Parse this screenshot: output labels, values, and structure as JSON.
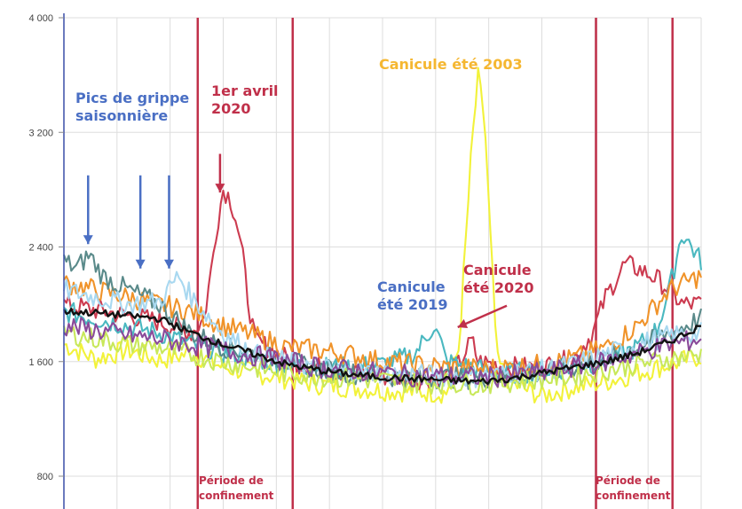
{
  "chart_data": {
    "type": "line",
    "title": "",
    "xlabel": "",
    "ylabel": "",
    "ylim": [
      700,
      4050
    ],
    "x_range": [
      0,
      100
    ],
    "grid": "on",
    "legend": "none",
    "yticks": [
      {
        "value": 800,
        "label": "800"
      },
      {
        "value": 1600,
        "label": "1 600"
      },
      {
        "value": 2400,
        "label": "2 400"
      },
      {
        "value": 3200,
        "label": "3 200"
      },
      {
        "value": 4000,
        "label": "4 000"
      }
    ],
    "period_markers": [
      {
        "start": 21,
        "end": 35.9,
        "label_lines": [
          "Période de",
          "confinement"
        ],
        "color": "#c0304a"
      },
      {
        "start": 83.5,
        "end": 95.5,
        "label_lines": [
          "Période de",
          "confinement"
        ],
        "color": "#c0304a"
      }
    ],
    "series": [
      {
        "color": "#f2f23a",
        "points": [
          [
            0,
            1720
          ],
          [
            5,
            1620
          ],
          [
            10,
            1680
          ],
          [
            15,
            1610
          ],
          [
            20,
            1660
          ],
          [
            25,
            1560
          ],
          [
            30,
            1520
          ],
          [
            35,
            1480
          ],
          [
            40,
            1440
          ],
          [
            45,
            1420
          ],
          [
            50,
            1400
          ],
          [
            55,
            1390
          ],
          [
            60,
            1380
          ],
          [
            62,
            1700
          ],
          [
            63,
            2400
          ],
          [
            64,
            3100
          ],
          [
            65,
            3580
          ],
          [
            66,
            3300
          ],
          [
            67,
            2400
          ],
          [
            68,
            1600
          ],
          [
            70,
            1450
          ],
          [
            75,
            1360
          ],
          [
            80,
            1420
          ],
          [
            85,
            1460
          ],
          [
            90,
            1520
          ],
          [
            95,
            1580
          ],
          [
            100,
            1640
          ]
        ]
      },
      {
        "color": "#cc3b50",
        "points": [
          [
            0,
            2000
          ],
          [
            5,
            1960
          ],
          [
            10,
            1920
          ],
          [
            15,
            1880
          ],
          [
            20,
            1800
          ],
          [
            22,
            1900
          ],
          [
            23,
            2200
          ],
          [
            24,
            2550
          ],
          [
            25,
            2800
          ],
          [
            26,
            2750
          ],
          [
            27,
            2600
          ],
          [
            28,
            2350
          ],
          [
            29,
            2000
          ],
          [
            30,
            1750
          ],
          [
            35,
            1620
          ],
          [
            40,
            1560
          ],
          [
            45,
            1520
          ],
          [
            50,
            1500
          ],
          [
            55,
            1480
          ],
          [
            60,
            1500
          ],
          [
            62,
            1580
          ],
          [
            64,
            1750
          ],
          [
            65,
            1600
          ],
          [
            70,
            1560
          ],
          [
            75,
            1560
          ],
          [
            80,
            1620
          ],
          [
            83,
            1800
          ],
          [
            85,
            2050
          ],
          [
            88,
            2280
          ],
          [
            90,
            2250
          ],
          [
            93,
            2180
          ],
          [
            95,
            2100
          ],
          [
            97,
            2000
          ],
          [
            100,
            2000
          ]
        ]
      },
      {
        "color": "#4ab8c0",
        "points": [
          [
            0,
            1950
          ],
          [
            5,
            1900
          ],
          [
            10,
            1850
          ],
          [
            15,
            1800
          ],
          [
            20,
            1720
          ],
          [
            25,
            1660
          ],
          [
            30,
            1620
          ],
          [
            35,
            1580
          ],
          [
            40,
            1560
          ],
          [
            45,
            1560
          ],
          [
            50,
            1580
          ],
          [
            55,
            1650
          ],
          [
            58,
            1850
          ],
          [
            59,
            1750
          ],
          [
            60,
            1600
          ],
          [
            65,
            1550
          ],
          [
            70,
            1520
          ],
          [
            75,
            1530
          ],
          [
            80,
            1560
          ],
          [
            85,
            1600
          ],
          [
            90,
            1700
          ],
          [
            93,
            1820
          ],
          [
            95,
            2100
          ],
          [
            97,
            2500
          ],
          [
            100,
            2300
          ]
        ]
      },
      {
        "color": "#f0932a",
        "points": [
          [
            0,
            2150
          ],
          [
            5,
            2100
          ],
          [
            10,
            2050
          ],
          [
            15,
            2000
          ],
          [
            20,
            1950
          ],
          [
            25,
            1850
          ],
          [
            30,
            1780
          ],
          [
            35,
            1700
          ],
          [
            40,
            1680
          ],
          [
            45,
            1650
          ],
          [
            50,
            1600
          ],
          [
            55,
            1580
          ],
          [
            60,
            1560
          ],
          [
            65,
            1550
          ],
          [
            70,
            1560
          ],
          [
            75,
            1580
          ],
          [
            80,
            1620
          ],
          [
            85,
            1700
          ],
          [
            90,
            1850
          ],
          [
            95,
            2100
          ],
          [
            100,
            2200
          ]
        ]
      },
      {
        "color": "#5a8a8a",
        "points": [
          [
            0,
            2300
          ],
          [
            2,
            2250
          ],
          [
            4,
            2350
          ],
          [
            6,
            2200
          ],
          [
            10,
            2100
          ],
          [
            15,
            2000
          ],
          [
            20,
            1800
          ],
          [
            25,
            1700
          ],
          [
            30,
            1650
          ],
          [
            35,
            1600
          ],
          [
            40,
            1550
          ],
          [
            45,
            1520
          ],
          [
            50,
            1500
          ],
          [
            55,
            1480
          ],
          [
            60,
            1490
          ],
          [
            65,
            1480
          ],
          [
            70,
            1500
          ],
          [
            75,
            1520
          ],
          [
            80,
            1560
          ],
          [
            85,
            1620
          ],
          [
            90,
            1700
          ],
          [
            95,
            1800
          ],
          [
            100,
            1900
          ]
        ]
      },
      {
        "color": "#a8d8f0",
        "points": [
          [
            0,
            2100
          ],
          [
            5,
            2050
          ],
          [
            10,
            2000
          ],
          [
            15,
            2020
          ],
          [
            18,
            2200
          ],
          [
            20,
            2050
          ],
          [
            25,
            1800
          ],
          [
            30,
            1650
          ],
          [
            35,
            1600
          ],
          [
            40,
            1560
          ],
          [
            45,
            1530
          ],
          [
            50,
            1520
          ],
          [
            55,
            1510
          ],
          [
            60,
            1500
          ],
          [
            65,
            1490
          ],
          [
            70,
            1520
          ],
          [
            75,
            1540
          ],
          [
            80,
            1580
          ],
          [
            85,
            1650
          ],
          [
            90,
            1720
          ],
          [
            95,
            1780
          ],
          [
            100,
            1800
          ]
        ]
      },
      {
        "color": "#c8e85a",
        "points": [
          [
            0,
            1800
          ],
          [
            5,
            1760
          ],
          [
            10,
            1720
          ],
          [
            15,
            1700
          ],
          [
            20,
            1650
          ],
          [
            25,
            1600
          ],
          [
            30,
            1560
          ],
          [
            35,
            1520
          ],
          [
            40,
            1500
          ],
          [
            45,
            1480
          ],
          [
            50,
            1470
          ],
          [
            55,
            1450
          ],
          [
            60,
            1450
          ],
          [
            65,
            1440
          ],
          [
            70,
            1460
          ],
          [
            75,
            1480
          ],
          [
            80,
            1500
          ],
          [
            85,
            1540
          ],
          [
            90,
            1580
          ],
          [
            95,
            1620
          ],
          [
            100,
            1650
          ]
        ]
      },
      {
        "color": "#8a4a9a",
        "points": [
          [
            0,
            1850
          ],
          [
            5,
            1820
          ],
          [
            10,
            1780
          ],
          [
            15,
            1760
          ],
          [
            20,
            1720
          ],
          [
            25,
            1680
          ],
          [
            30,
            1640
          ],
          [
            35,
            1600
          ],
          [
            40,
            1560
          ],
          [
            45,
            1540
          ],
          [
            50,
            1520
          ],
          [
            55,
            1500
          ],
          [
            60,
            1500
          ],
          [
            65,
            1490
          ],
          [
            70,
            1500
          ],
          [
            75,
            1520
          ],
          [
            80,
            1560
          ],
          [
            85,
            1600
          ],
          [
            90,
            1660
          ],
          [
            95,
            1720
          ],
          [
            100,
            1760
          ]
        ]
      },
      {
        "color": "#111111",
        "points": [
          [
            0,
            1950
          ],
          [
            5,
            1940
          ],
          [
            10,
            1920
          ],
          [
            15,
            1900
          ],
          [
            20,
            1800
          ],
          [
            25,
            1720
          ],
          [
            30,
            1650
          ],
          [
            35,
            1580
          ],
          [
            40,
            1540
          ],
          [
            45,
            1510
          ],
          [
            50,
            1490
          ],
          [
            55,
            1480
          ],
          [
            60,
            1470
          ],
          [
            65,
            1460
          ],
          [
            70,
            1480
          ],
          [
            75,
            1520
          ],
          [
            80,
            1560
          ],
          [
            85,
            1600
          ],
          [
            90,
            1660
          ],
          [
            95,
            1740
          ],
          [
            100,
            1850
          ]
        ]
      }
    ],
    "annotations": [
      {
        "lines": [
          "Pics de grippe",
          "saisonnière"
        ],
        "color": "#4a6fc4"
      },
      {
        "lines": [
          "1er avril",
          "2020"
        ],
        "color": "#c0304a"
      },
      {
        "lines": [
          "Canicule été 2003"
        ],
        "color": "#f5b731"
      },
      {
        "lines": [
          "Canicule",
          "été 2019"
        ],
        "color": "#4a6fc4"
      },
      {
        "lines": [
          "Canicule",
          "été 2020"
        ],
        "color": "#c0304a"
      }
    ],
    "arrows": [
      {
        "x": 3.8,
        "y_from": 2900,
        "y_to": 2420,
        "color": "#4a6fc4"
      },
      {
        "x": 12,
        "y_from": 2900,
        "y_to": 2250,
        "color": "#4a6fc4"
      },
      {
        "x": 16.5,
        "y_from": 2900,
        "y_to": 2250,
        "color": "#4a6fc4"
      },
      {
        "x": 24.5,
        "y_from": 3050,
        "y_to": 2780,
        "color": "#c0304a"
      },
      {
        "x_from": 69.5,
        "y_from": 1990,
        "x_to": 61.8,
        "y_to": 1840,
        "color": "#c0304a"
      }
    ]
  }
}
